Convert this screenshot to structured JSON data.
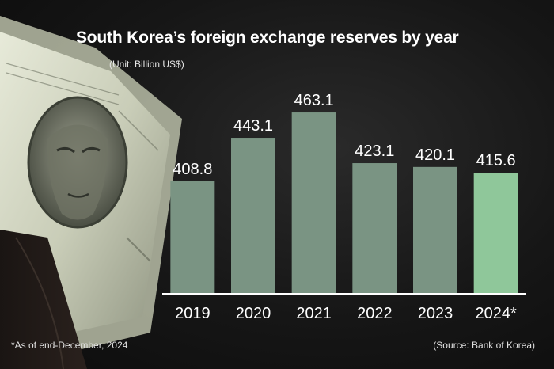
{
  "title": "South Korea’s foreign exchange reserves by year",
  "unit": "(Unit: Billion US$)",
  "footnote": "*As of end-December, 2024",
  "source": "(Source: Bank of Korea)",
  "colors": {
    "bar": "#7a9483",
    "bar_highlight": "#8fc79a",
    "axis": "#ffffff",
    "label": "#ffffff"
  },
  "chart_data": {
    "type": "bar",
    "categories": [
      "2019",
      "2020",
      "2021",
      "2022",
      "2023",
      "2024*"
    ],
    "values": [
      408.8,
      443.1,
      463.1,
      423.1,
      420.1,
      415.6
    ],
    "value_labels": [
      "408.8",
      "443.1",
      "463.1",
      "423.1",
      "420.1",
      "415.6"
    ],
    "highlight_index": 5,
    "title": "South Korea’s foreign exchange reserves by year",
    "xlabel": "",
    "ylabel": "",
    "ylim": [
      320,
      470
    ],
    "grid": false,
    "legend": "none"
  }
}
